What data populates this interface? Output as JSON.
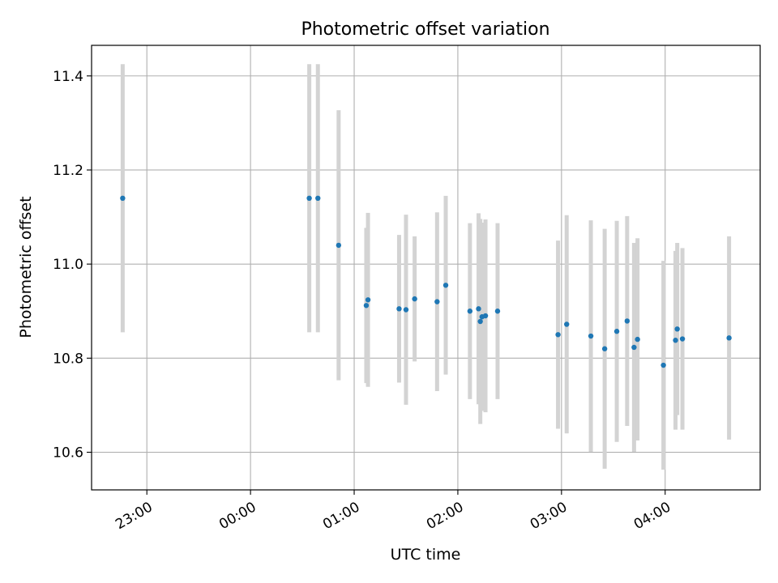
{
  "chart_data": {
    "type": "scatter",
    "title": "Photometric offset variation",
    "xlabel": "UTC time",
    "ylabel": "Photometric offset",
    "x_axis": {
      "kind": "time",
      "start": "22:28",
      "end": "04:55",
      "ticks": [
        "23:00",
        "00:00",
        "01:00",
        "02:00",
        "03:00",
        "04:00"
      ]
    },
    "ylim": [
      10.52,
      11.465
    ],
    "y_ticks": [
      "10.6",
      "10.8",
      "11.0",
      "11.2",
      "11.4"
    ],
    "grid": true,
    "legend": "none",
    "colors": {
      "point": "#1f77b4",
      "errorbar": "#d3d3d3",
      "grid": "#b0b0b0"
    },
    "points": [
      {
        "x": "22:46",
        "y": 11.14,
        "err": 0.285
      },
      {
        "x": "00:34",
        "y": 11.14,
        "err": 0.285
      },
      {
        "x": "00:39",
        "y": 11.14,
        "err": 0.285
      },
      {
        "x": "00:51",
        "y": 11.04,
        "err": 0.287
      },
      {
        "x": "01:07",
        "y": 10.912,
        "err": 0.165
      },
      {
        "x": "01:08",
        "y": 10.924,
        "err": 0.185
      },
      {
        "x": "01:26",
        "y": 10.905,
        "err": 0.157
      },
      {
        "x": "01:30",
        "y": 10.903,
        "err": 0.202
      },
      {
        "x": "01:35",
        "y": 10.926,
        "err": 0.133
      },
      {
        "x": "01:48",
        "y": 10.92,
        "err": 0.19
      },
      {
        "x": "01:53",
        "y": 10.955,
        "err": 0.19
      },
      {
        "x": "02:07",
        "y": 10.9,
        "err": 0.187
      },
      {
        "x": "02:12",
        "y": 10.905,
        "err": 0.203
      },
      {
        "x": "02:13",
        "y": 10.878,
        "err": 0.218
      },
      {
        "x": "02:14",
        "y": 10.888,
        "err": 0.2
      },
      {
        "x": "02:16",
        "y": 10.89,
        "err": 0.205
      },
      {
        "x": "02:23",
        "y": 10.9,
        "err": 0.187
      },
      {
        "x": "02:58",
        "y": 10.85,
        "err": 0.2
      },
      {
        "x": "03:03",
        "y": 10.872,
        "err": 0.232
      },
      {
        "x": "03:17",
        "y": 10.847,
        "err": 0.246
      },
      {
        "x": "03:25",
        "y": 10.82,
        "err": 0.255
      },
      {
        "x": "03:32",
        "y": 10.857,
        "err": 0.235
      },
      {
        "x": "03:38",
        "y": 10.879,
        "err": 0.223
      },
      {
        "x": "03:42",
        "y": 10.823,
        "err": 0.222
      },
      {
        "x": "03:44",
        "y": 10.84,
        "err": 0.215
      },
      {
        "x": "03:59",
        "y": 10.785,
        "err": 0.222
      },
      {
        "x": "04:06",
        "y": 10.838,
        "err": 0.19
      },
      {
        "x": "04:07",
        "y": 10.862,
        "err": 0.183
      },
      {
        "x": "04:10",
        "y": 10.841,
        "err": 0.193
      },
      {
        "x": "04:37",
        "y": 10.843,
        "err": 0.216
      }
    ]
  }
}
